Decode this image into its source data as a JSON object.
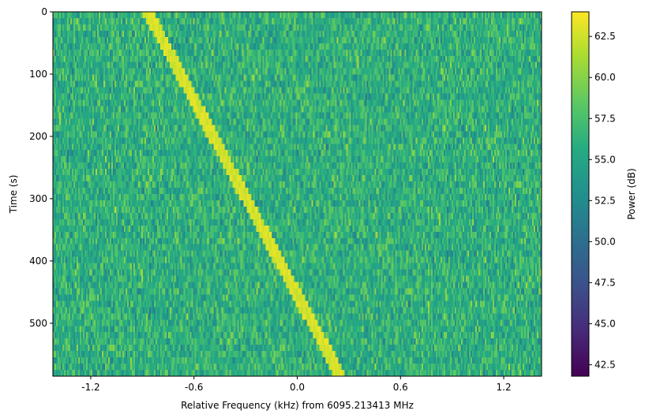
{
  "chart_data": {
    "type": "heatmap",
    "title": "",
    "xlabel": "Relative Frequency (kHz) from 6095.213413 MHz",
    "ylabel": "Time (s)",
    "xlim": [
      -1.42,
      1.42
    ],
    "ylim": [
      585,
      0
    ],
    "x_ticks": [
      -1.2,
      -0.6,
      0.0,
      0.6,
      1.2
    ],
    "x_tick_labels": [
      "-1.2",
      "-0.6",
      "0.0",
      "0.6",
      "1.2"
    ],
    "y_ticks": [
      0,
      100,
      200,
      300,
      400,
      500
    ],
    "y_tick_labels": [
      "0",
      "100",
      "200",
      "300",
      "400",
      "500"
    ],
    "colormap": "viridis",
    "colorbar": {
      "label": "Power (dB)",
      "range": [
        41.8,
        64.0
      ],
      "ticks": [
        42.5,
        45.0,
        47.5,
        50.0,
        52.5,
        55.0,
        57.5,
        60.0,
        62.5
      ],
      "tick_labels": [
        "42.5",
        "45.0",
        "47.5",
        "50.0",
        "52.5",
        "55.0",
        "57.5",
        "60.0",
        "62.5"
      ]
    },
    "background_noise_db": {
      "mean": 56.0,
      "spread": 4.5
    },
    "signal_track": {
      "description_points": [
        {
          "time_s": 0,
          "freq_khz": -0.87
        },
        {
          "time_s": 585,
          "freq_khz": 0.25
        }
      ],
      "peak_power_db": 63.5
    }
  }
}
